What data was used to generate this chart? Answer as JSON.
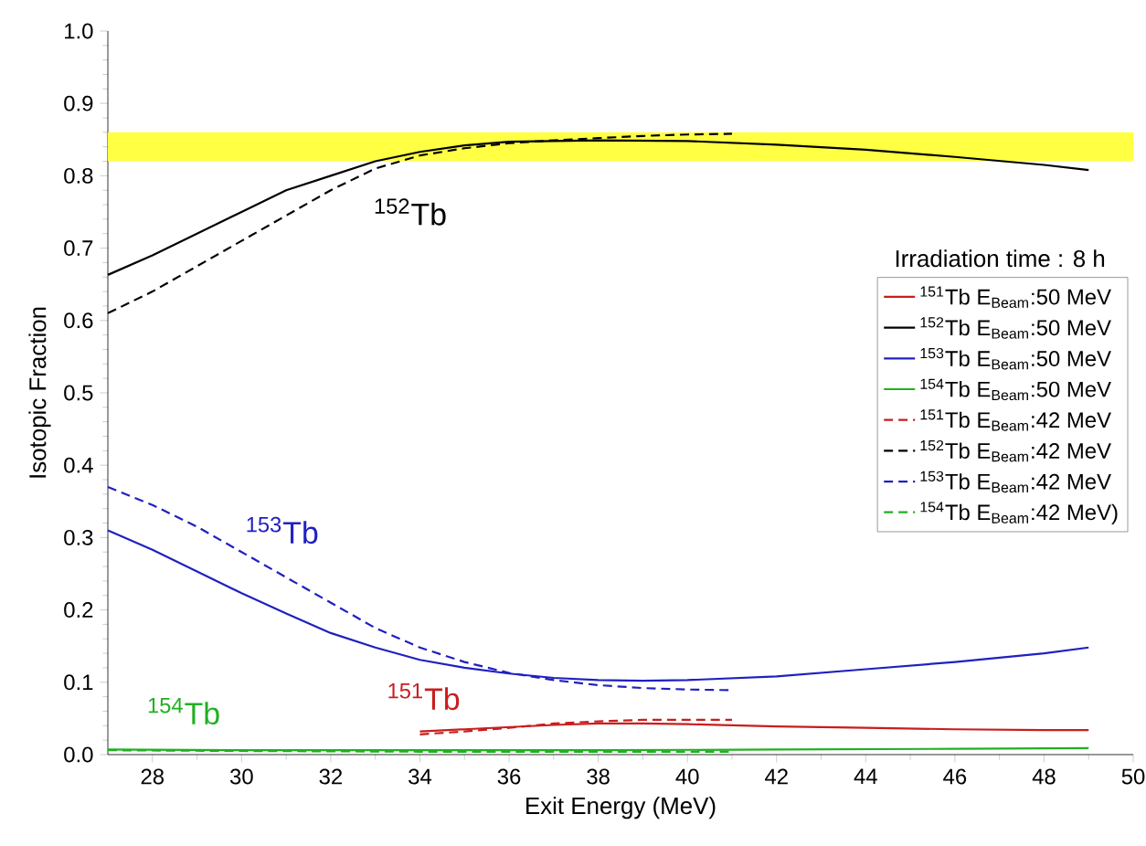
{
  "chart_data": {
    "type": "line",
    "xlabel": "Exit Energy (MeV)",
    "ylabel": "Isotopic Fraction",
    "legend_title": "Irradiation time : 8 h",
    "legend": "right",
    "xlim": [
      27,
      50
    ],
    "ylim": [
      0,
      1
    ],
    "xticks": [
      28,
      30,
      32,
      34,
      36,
      38,
      40,
      42,
      44,
      46,
      48,
      50
    ],
    "yticks": [
      {
        "value": 0,
        "label": "0.0"
      },
      {
        "value": 0.1,
        "label": "0.1"
      },
      {
        "value": 0.2,
        "label": "0.2"
      },
      {
        "value": 0.3,
        "label": "0.3"
      },
      {
        "value": 0.4,
        "label": "0.4"
      },
      {
        "value": 0.5,
        "label": "0.5"
      },
      {
        "value": 0.6,
        "label": "0.6"
      },
      {
        "value": 0.7,
        "label": "0.7"
      },
      {
        "value": 0.8,
        "label": "0.8"
      },
      {
        "value": 0.9,
        "label": "0.9"
      },
      {
        "value": 1.0,
        "label": "1.0"
      }
    ],
    "bands": [
      {
        "axis": "y",
        "from": 0.82,
        "to": 0.86,
        "color": "#ffff44"
      }
    ],
    "series": [
      {
        "name": "$^{151}$Tb   E$_{Beam}$:50 MeV",
        "color": "#c81e1e",
        "line_style": "solid",
        "x": [
          34,
          35,
          36,
          37,
          38,
          39,
          40,
          42,
          44,
          46,
          48,
          49
        ],
        "values": [
          0.032,
          0.035,
          0.038,
          0.041,
          0.043,
          0.043,
          0.042,
          0.039,
          0.037,
          0.035,
          0.034,
          0.034
        ]
      },
      {
        "name": "$^{152}$Tb   E$_{Beam}$:50 MeV",
        "color": "#000000",
        "line_style": "solid",
        "x": [
          27,
          28,
          29,
          30,
          31,
          32,
          33,
          34,
          35,
          36,
          38,
          40,
          42,
          44,
          46,
          48,
          49
        ],
        "values": [
          0.663,
          0.69,
          0.72,
          0.75,
          0.78,
          0.8,
          0.82,
          0.833,
          0.842,
          0.847,
          0.849,
          0.848,
          0.843,
          0.836,
          0.826,
          0.815,
          0.808
        ]
      },
      {
        "name": "$^{153}$Tb   E$_{Beam}$:50 MeV",
        "color": "#2020c0",
        "line_style": "solid",
        "x": [
          27,
          28,
          29,
          30,
          31,
          32,
          33,
          34,
          35,
          36,
          37,
          38,
          39,
          40,
          42,
          44,
          46,
          48,
          49
        ],
        "values": [
          0.31,
          0.283,
          0.253,
          0.223,
          0.195,
          0.168,
          0.148,
          0.131,
          0.12,
          0.112,
          0.106,
          0.103,
          0.102,
          0.103,
          0.108,
          0.118,
          0.128,
          0.14,
          0.148
        ]
      },
      {
        "name": "$^{154}$Tb   E$_{Beam}$:50 MeV",
        "color": "#20b020",
        "line_style": "solid",
        "x": [
          27,
          30,
          34,
          38,
          42,
          46,
          49
        ],
        "values": [
          0.007,
          0.006,
          0.006,
          0.006,
          0.007,
          0.008,
          0.009
        ]
      },
      {
        "name": "$^{151}$Tb   E$_{Beam}$:42 MeV",
        "color": "#c81e1e",
        "line_style": "dashed",
        "x": [
          34,
          35,
          36,
          37,
          38,
          39,
          40,
          41
        ],
        "values": [
          0.028,
          0.032,
          0.037,
          0.043,
          0.046,
          0.048,
          0.048,
          0.048
        ]
      },
      {
        "name": "$^{152}$Tb   E$_{Beam}$:42 MeV",
        "color": "#000000",
        "line_style": "dashed",
        "x": [
          27,
          28,
          29,
          30,
          31,
          32,
          33,
          34,
          35,
          36,
          37,
          38,
          39,
          40,
          41
        ],
        "values": [
          0.61,
          0.64,
          0.675,
          0.71,
          0.745,
          0.78,
          0.81,
          0.828,
          0.838,
          0.845,
          0.849,
          0.852,
          0.855,
          0.857,
          0.858
        ]
      },
      {
        "name": "$^{153}$Tb   E$_{Beam}$:42 MeV",
        "color": "#2020c0",
        "line_style": "dashed",
        "x": [
          27,
          28,
          29,
          30,
          31,
          32,
          33,
          34,
          35,
          36,
          37,
          38,
          39,
          40,
          41
        ],
        "values": [
          0.37,
          0.345,
          0.315,
          0.28,
          0.245,
          0.21,
          0.175,
          0.148,
          0.128,
          0.113,
          0.103,
          0.096,
          0.092,
          0.09,
          0.089
        ]
      },
      {
        "name": "$^{154}$Tb   E$_{Beam}$:42 MeV)",
        "color": "#20b020",
        "line_style": "dashed",
        "x": [
          27,
          30,
          34,
          38,
          41
        ],
        "values": [
          0.006,
          0.005,
          0.004,
          0.004,
          0.004
        ]
      }
    ],
    "annotations": [
      "$^{151}$Tb",
      "$^{152}$Tb",
      "$^{153}$Tb",
      "$^{154}$Tb"
    ]
  }
}
